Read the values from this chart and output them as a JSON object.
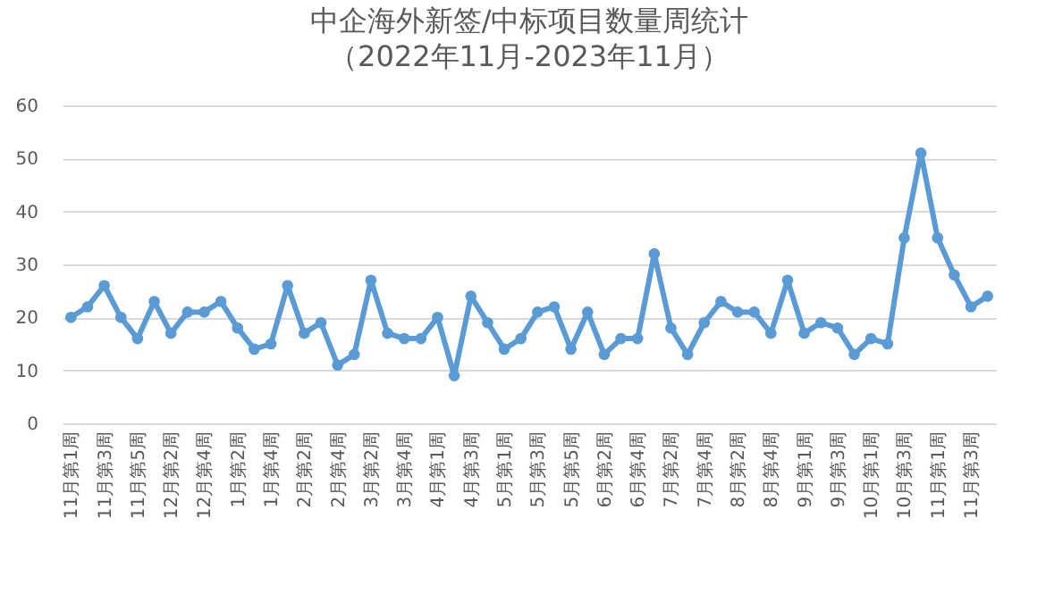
{
  "chart_data": {
    "type": "line",
    "title": "中企海外新签/中标项目数量周统计",
    "subtitle": "（2022年11月-2023年11月）",
    "categories": [
      "11月第1周",
      null,
      "11月第3周",
      null,
      "11月第5周",
      null,
      "12月第2周",
      null,
      "12月第4周",
      null,
      "1月第2周",
      null,
      "1月第4周",
      null,
      "2月第2周",
      null,
      "2月第4周",
      null,
      "3月第2周",
      null,
      "3月第4周",
      null,
      "4月第1周",
      null,
      "4月第3周",
      null,
      "5月第1周",
      null,
      "5月第3周",
      null,
      "5月第5周",
      null,
      "6月第2周",
      null,
      "6月第4周",
      null,
      "7月第2周",
      null,
      "7月第4周",
      null,
      "8月第2周",
      null,
      "8月第4周",
      null,
      "9月第1周",
      null,
      "9月第3周",
      null,
      "10月第1周",
      null,
      "10月第3周",
      null,
      "11月第1周",
      null,
      "11月第3周",
      null
    ],
    "series": [
      {
        "color": "#5b9bd5",
        "values": [
          20,
          22,
          26,
          20,
          16,
          23,
          17,
          21,
          21,
          23,
          18,
          14,
          15,
          26,
          17,
          19,
          11,
          13,
          27,
          17,
          16,
          16,
          20,
          9,
          24,
          19,
          14,
          16,
          21,
          22,
          14,
          21,
          13,
          16,
          16,
          32,
          18,
          13,
          19,
          23,
          21,
          21,
          17,
          27,
          17,
          19,
          18,
          13,
          16,
          15,
          35,
          51,
          35,
          28,
          22,
          24
        ]
      }
    ],
    "ylim": [
      0,
      60
    ],
    "yticks": [
      0,
      10,
      20,
      30,
      40,
      50,
      60
    ],
    "grid": "y",
    "marker": "circle",
    "line_style": "solid",
    "legend": false
  }
}
